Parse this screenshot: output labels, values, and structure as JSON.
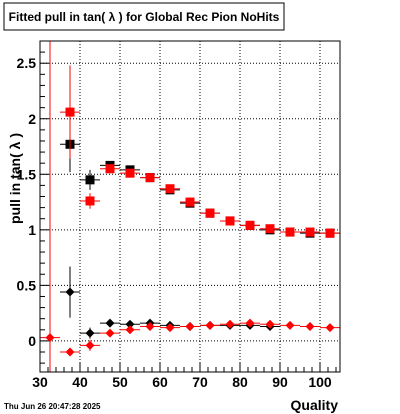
{
  "chart_data": {
    "type": "scatter",
    "title": "Fitted pull in tan( λ ) for Global Rec Pion NoHits",
    "xlabel": "Quality",
    "ylabel": "pull in tan( λ )",
    "timestamp": "Thu Jun 26 20:47:28 2025",
    "xlim": [
      30,
      105
    ],
    "ylim": [
      -0.28,
      2.7
    ],
    "x_ticks": [
      30,
      40,
      50,
      60,
      70,
      80,
      90,
      100
    ],
    "y_ticks": [
      0,
      0.5,
      1,
      1.5,
      2,
      2.5
    ],
    "y_tick_labels": [
      "0",
      "0.5",
      "1",
      "1.5",
      "2",
      "2.5"
    ],
    "grid": true,
    "vertical_line_x": 32.5,
    "colors": {
      "black": "#000000",
      "red": "#ff0000",
      "frame": "#000000"
    },
    "series": [
      {
        "marker": "square",
        "color": "#000000",
        "points": [
          {
            "x": 37.5,
            "y": 1.77,
            "yerr": 0.25
          },
          {
            "x": 42.5,
            "y": 1.45,
            "yerr": 0.09
          },
          {
            "x": 47.5,
            "y": 1.58,
            "yerr": 0.03
          },
          {
            "x": 52.5,
            "y": 1.54,
            "yerr": 0.03
          },
          {
            "x": 57.5,
            "y": 1.47,
            "yerr": 0.03
          },
          {
            "x": 62.5,
            "y": 1.36,
            "yerr": 0.02
          },
          {
            "x": 67.5,
            "y": 1.24,
            "yerr": 0.03
          },
          {
            "x": 72.5,
            "y": 1.15,
            "yerr": 0.02
          },
          {
            "x": 77.5,
            "y": 1.08,
            "yerr": 0.02
          },
          {
            "x": 82.5,
            "y": 1.04,
            "yerr": 0.02
          },
          {
            "x": 87.5,
            "y": 1.0,
            "yerr": 0.02
          },
          {
            "x": 92.5,
            "y": 0.98,
            "yerr": 0.02
          },
          {
            "x": 97.5,
            "y": 0.97,
            "yerr": 0.02
          },
          {
            "x": 102.5,
            "y": 0.97,
            "yerr": 0.02
          }
        ]
      },
      {
        "marker": "square",
        "color": "#ff0000",
        "points": [
          {
            "x": 37.5,
            "y": 2.06,
            "yerr": 0.42
          },
          {
            "x": 42.5,
            "y": 1.26,
            "yerr": 0.07
          },
          {
            "x": 47.5,
            "y": 1.55,
            "yerr": 0.03
          },
          {
            "x": 52.5,
            "y": 1.51,
            "yerr": 0.03
          },
          {
            "x": 57.5,
            "y": 1.47,
            "yerr": 0.03
          },
          {
            "x": 62.5,
            "y": 1.37,
            "yerr": 0.02
          },
          {
            "x": 67.5,
            "y": 1.25,
            "yerr": 0.02
          },
          {
            "x": 72.5,
            "y": 1.15,
            "yerr": 0.02
          },
          {
            "x": 77.5,
            "y": 1.08,
            "yerr": 0.02
          },
          {
            "x": 82.5,
            "y": 1.04,
            "yerr": 0.02
          },
          {
            "x": 87.5,
            "y": 1.01,
            "yerr": 0.02
          },
          {
            "x": 92.5,
            "y": 0.98,
            "yerr": 0.02
          },
          {
            "x": 97.5,
            "y": 0.98,
            "yerr": 0.02
          },
          {
            "x": 102.5,
            "y": 0.97,
            "yerr": 0.02
          }
        ]
      },
      {
        "marker": "diamond",
        "color": "#000000",
        "points": [
          {
            "x": 37.5,
            "y": 0.44,
            "yerr": 0.23
          },
          {
            "x": 42.5,
            "y": 0.07,
            "yerr": 0.05
          },
          {
            "x": 47.5,
            "y": 0.16,
            "yerr": 0.02
          },
          {
            "x": 52.5,
            "y": 0.15,
            "yerr": 0.02
          },
          {
            "x": 57.5,
            "y": 0.16,
            "yerr": 0.02
          },
          {
            "x": 62.5,
            "y": 0.14,
            "yerr": 0.02
          },
          {
            "x": 67.5,
            "y": 0.13,
            "yerr": 0.02
          },
          {
            "x": 72.5,
            "y": 0.14,
            "yerr": 0.02
          },
          {
            "x": 77.5,
            "y": 0.14,
            "yerr": 0.02
          },
          {
            "x": 82.5,
            "y": 0.14,
            "yerr": 0.02
          },
          {
            "x": 87.5,
            "y": 0.13,
            "yerr": 0.02
          }
        ]
      },
      {
        "marker": "diamond",
        "color": "#ff0000",
        "points": [
          {
            "x": 32.5,
            "y": 0.03,
            "yerr": 0.02
          },
          {
            "x": 37.5,
            "y": -0.1,
            "yerr": 0.03
          },
          {
            "x": 42.5,
            "y": -0.04,
            "yerr": 0.05
          },
          {
            "x": 47.5,
            "y": 0.07,
            "yerr": 0.03
          },
          {
            "x": 52.5,
            "y": 0.1,
            "yerr": 0.02
          },
          {
            "x": 57.5,
            "y": 0.13,
            "yerr": 0.02
          },
          {
            "x": 62.5,
            "y": 0.12,
            "yerr": 0.02
          },
          {
            "x": 67.5,
            "y": 0.13,
            "yerr": 0.02
          },
          {
            "x": 72.5,
            "y": 0.14,
            "yerr": 0.02
          },
          {
            "x": 77.5,
            "y": 0.15,
            "yerr": 0.02
          },
          {
            "x": 82.5,
            "y": 0.16,
            "yerr": 0.02
          },
          {
            "x": 87.5,
            "y": 0.15,
            "yerr": 0.02
          },
          {
            "x": 92.5,
            "y": 0.14,
            "yerr": 0.02
          },
          {
            "x": 97.5,
            "y": 0.13,
            "yerr": 0.02
          },
          {
            "x": 102.5,
            "y": 0.12,
            "yerr": 0.02
          }
        ]
      }
    ]
  }
}
